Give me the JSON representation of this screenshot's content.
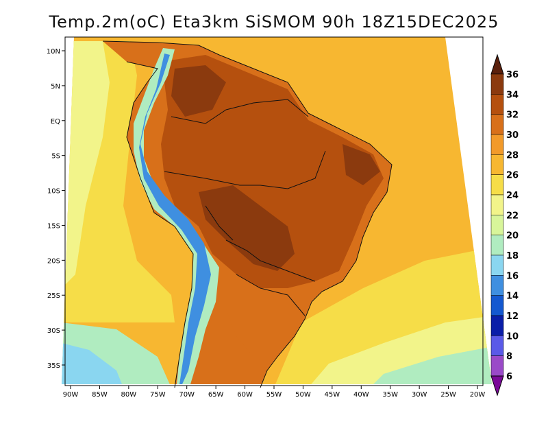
{
  "title": "Temp.2m(oC) Eta3km SiSMOM 90h 18Z15DEC2025",
  "longitude_labels": [
    "90W",
    "85W",
    "80W",
    "75W",
    "70W",
    "65W",
    "60W",
    "55W",
    "50W",
    "45W",
    "40W",
    "35W",
    "30W",
    "25W",
    "20W"
  ],
  "latitude_labels": [
    "10N",
    "5N",
    "EQ",
    "5S",
    "10S",
    "15S",
    "20S",
    "25S",
    "30S",
    "35S"
  ],
  "colorbar": {
    "labels": [
      "36",
      "34",
      "32",
      "30",
      "28",
      "26",
      "24",
      "22",
      "20",
      "18",
      "16",
      "14",
      "12",
      "10",
      "8",
      "6"
    ],
    "colors": [
      "#5a200c",
      "#8b3a0e",
      "#b5500e",
      "#d8701a",
      "#f29a2a",
      "#f7b731",
      "#f6dd48",
      "#f2f48a",
      "#d8f59a",
      "#b0ecc0",
      "#8ad6f0",
      "#3f8fe0",
      "#1458d0",
      "#0a1ea8",
      "#5a5ae8",
      "#9a4ac8",
      "#7a0a98"
    ]
  },
  "map_colors": {
    "ocean_warm": "#f7b731",
    "ocean_mid": "#f6dd48",
    "ocean_cool": "#f2f48a",
    "ocean_cold": "#b0ecc0",
    "south_cold": "#8ad6f0",
    "land_hot": "#b5500e",
    "land_hotter": "#8b3a0e",
    "land_warm": "#d8701a",
    "andes_cold": "#3f8fe0"
  }
}
